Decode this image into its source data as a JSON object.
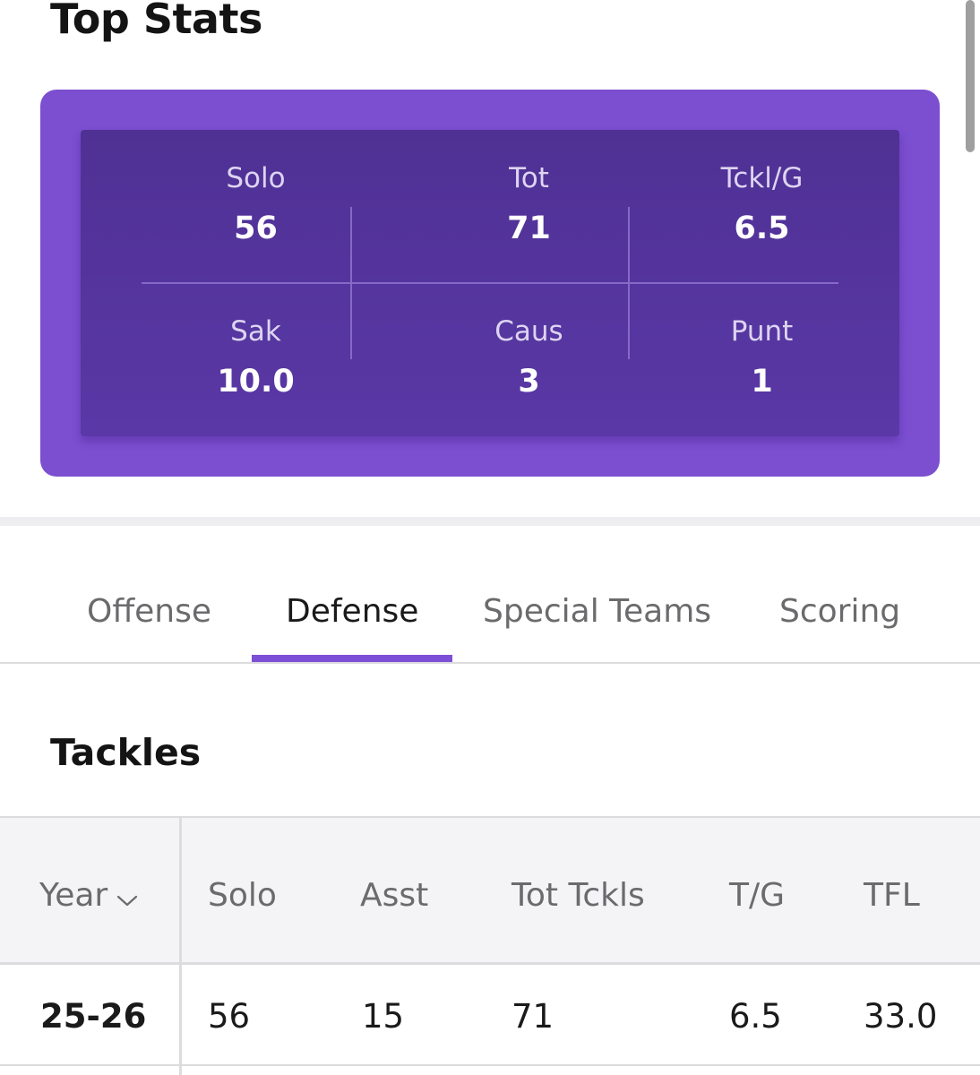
{
  "page_title": "Top Stats",
  "top_stats": {
    "colors": {
      "card": "#7b4fd0",
      "inner": "#5a38a6"
    },
    "items": [
      {
        "label": "Solo",
        "value": "56"
      },
      {
        "label": "Tot",
        "value": "71"
      },
      {
        "label": "Tckl/G",
        "value": "6.5"
      },
      {
        "label": "Sak",
        "value": "10.0"
      },
      {
        "label": "Caus",
        "value": "3"
      },
      {
        "label": "Punt",
        "value": "1"
      }
    ]
  },
  "tabs": {
    "active": "Defense",
    "accent_color": "#7d4fd6",
    "items": [
      {
        "label": "Offense"
      },
      {
        "label": "Defense"
      },
      {
        "label": "Special Teams"
      },
      {
        "label": "Scoring"
      }
    ]
  },
  "section": {
    "title": "Tackles"
  },
  "table": {
    "columns": [
      "Year",
      "Solo",
      "Asst",
      "Tot Tckls",
      "T/G",
      "TFL"
    ],
    "sort_icon": "chevron-down-icon",
    "rows": [
      {
        "year": "25-26",
        "solo": "56",
        "asst": "15",
        "tot": "71",
        "tg": "6.5",
        "tfl": "33.0"
      }
    ]
  }
}
